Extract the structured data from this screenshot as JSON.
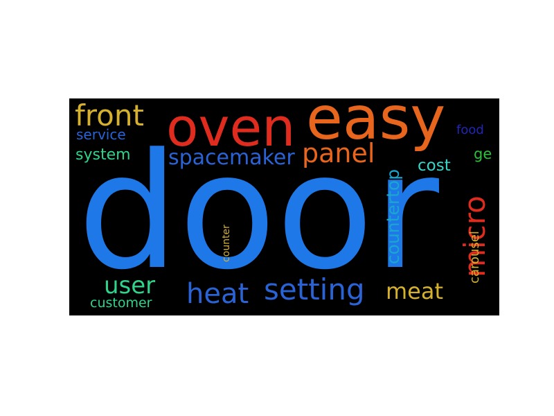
{
  "word_cloud": {
    "background": "#000000",
    "words": [
      {
        "id": "door",
        "text": "door",
        "color": "#1f78e8",
        "vertical": false
      },
      {
        "id": "easy",
        "text": "easy",
        "color": "#e8651e",
        "vertical": false
      },
      {
        "id": "oven",
        "text": "oven",
        "color": "#e02c1e",
        "vertical": false
      },
      {
        "id": "panel",
        "text": "panel",
        "color": "#e8651e",
        "vertical": false
      },
      {
        "id": "front",
        "text": "front",
        "color": "#d5b12e",
        "vertical": false
      },
      {
        "id": "spacemaker",
        "text": "spacemaker",
        "color": "#2a63d6",
        "vertical": false
      },
      {
        "id": "micro",
        "text": "micro",
        "color": "#e02c1e",
        "vertical": true
      },
      {
        "id": "setting",
        "text": "setting",
        "color": "#2a63d6",
        "vertical": false
      },
      {
        "id": "heat",
        "text": "heat",
        "color": "#2a63d6",
        "vertical": false
      },
      {
        "id": "user",
        "text": "user",
        "color": "#2fd48a",
        "vertical": false
      },
      {
        "id": "meat",
        "text": "meat",
        "color": "#d5b12e",
        "vertical": false
      },
      {
        "id": "countertop",
        "text": "countertop",
        "color": "#1aa6cf",
        "vertical": true
      },
      {
        "id": "service",
        "text": "service",
        "color": "#2a63d6",
        "vertical": false
      },
      {
        "id": "system",
        "text": "system",
        "color": "#2fd48a",
        "vertical": false
      },
      {
        "id": "cost",
        "text": "cost",
        "color": "#38d6c9",
        "vertical": false
      },
      {
        "id": "customer",
        "text": "customer",
        "color": "#2fd48a",
        "vertical": false
      },
      {
        "id": "carousel",
        "text": "carousel",
        "color": "#d5b12e",
        "vertical": true
      },
      {
        "id": "food",
        "text": "food",
        "color": "#2125b8",
        "vertical": false
      },
      {
        "id": "ge",
        "text": "ge",
        "color": "#29c23a",
        "vertical": false
      },
      {
        "id": "counter",
        "text": "counter",
        "color": "#d5b12e",
        "vertical": true
      }
    ]
  }
}
